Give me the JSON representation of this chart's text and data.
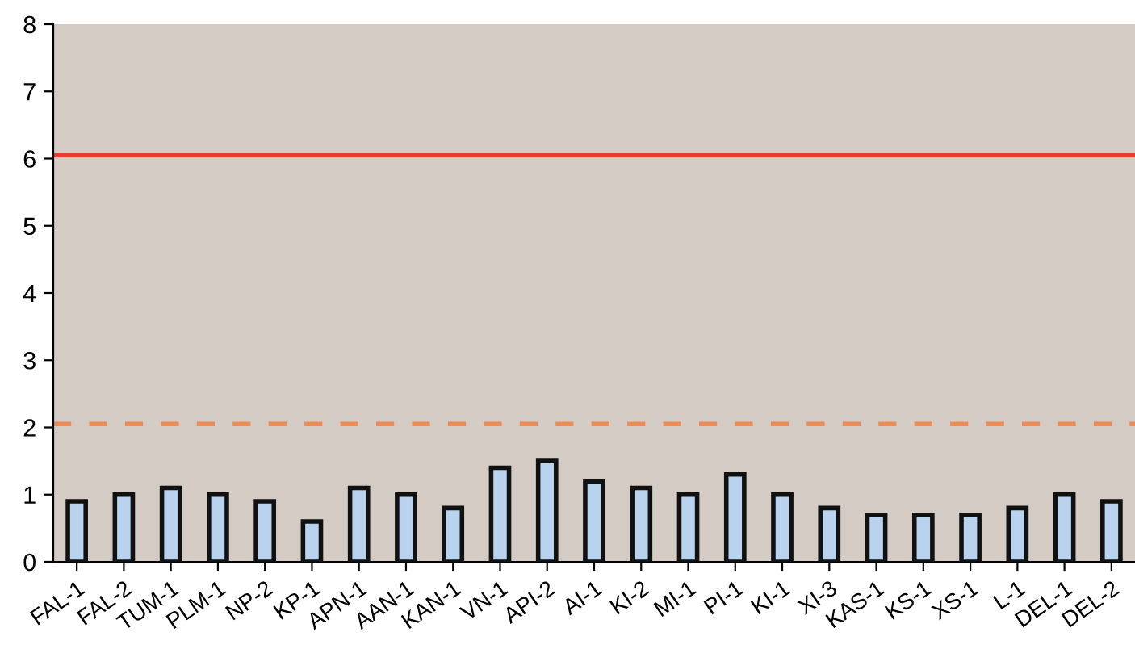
{
  "chart_data": {
    "type": "bar",
    "categories": [
      "FAL-1",
      "FAL-2",
      "TUM-1",
      "PLM-1",
      "NP-2",
      "KP-1",
      "APN-1",
      "AAN-1",
      "KAN-1",
      "VN-1",
      "API-2",
      "AI-1",
      "KI-2",
      "MI-1",
      "PI-1",
      "KI-1",
      "XI-3",
      "KAS-1",
      "KS-1",
      "XS-1",
      "L-1",
      "DEL-1",
      "DEL-2"
    ],
    "values": [
      0.9,
      1.0,
      1.1,
      1.0,
      0.9,
      0.6,
      1.1,
      1.0,
      0.8,
      1.4,
      1.5,
      1.2,
      1.1,
      1.0,
      1.3,
      1.0,
      0.8,
      0.7,
      0.7,
      0.7,
      0.8,
      1.0,
      0.9
    ],
    "color": "#b9d3ee",
    "ylim": [
      0,
      8
    ],
    "yticks": [
      0,
      1,
      2,
      3,
      4,
      5,
      6,
      7,
      8
    ],
    "ref_lines": [
      {
        "axis": "y",
        "value": 6.05,
        "color": "#ee3b30",
        "line_style": "solid"
      },
      {
        "axis": "y",
        "value": 2.05,
        "color": "#f08a50",
        "line_style": "dashed"
      }
    ],
    "grid": false
  }
}
